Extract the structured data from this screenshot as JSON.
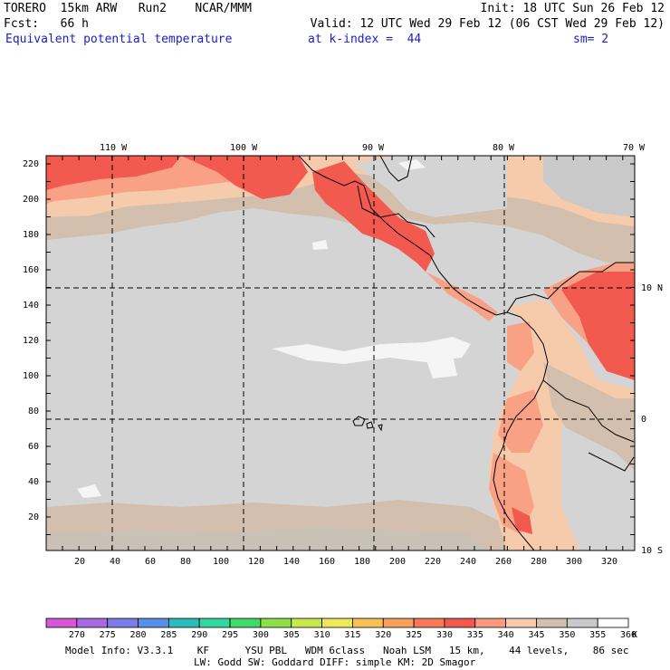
{
  "header": {
    "line1_left": "TORERO  15km ARW   Run2    NCAR/MMM",
    "line1_right": "Init: 18 UTC Sun 26 Feb 12",
    "line2_left": "Fcst:   66 h",
    "line2_right": "Valid: 12 UTC Wed 29 Feb 12 (06 CST Wed 29 Feb 12)",
    "line3_field": "Equivalent potential temperature",
    "line3_level": "at k-index =  44",
    "line3_smooth": "sm= 2"
  },
  "map": {
    "top_lon_labels": [
      "110 W",
      "100 W",
      "90 W",
      "80 W",
      "70 W"
    ],
    "right_lat_labels": [
      "10 N",
      "0",
      "10 S"
    ],
    "y_ticks": [
      "220",
      "200",
      "180",
      "160",
      "140",
      "120",
      "100",
      "80",
      "60",
      "40",
      "20"
    ],
    "x_ticks": [
      "20",
      "40",
      "60",
      "80",
      "100",
      "120",
      "140",
      "160",
      "180",
      "200",
      "220",
      "240",
      "260",
      "280",
      "300",
      "320"
    ],
    "colors": {
      "gray_light": "#d4d4d4",
      "tan": "#d2bfae",
      "peach": "#f6cbab",
      "salmon": "#f9a184",
      "red": "#f25a4f",
      "white": "#f5f5f5",
      "coast": "#000000"
    }
  },
  "colorbar": {
    "labels": [
      "270",
      "275",
      "280",
      "285",
      "290",
      "295",
      "300",
      "305",
      "310",
      "315",
      "320",
      "325",
      "330",
      "335",
      "340",
      "345",
      "350",
      "355",
      "360"
    ],
    "unit": "K",
    "colors": [
      "#d657d6",
      "#a96ae0",
      "#7d7de6",
      "#5b8ee6",
      "#2bbbbb",
      "#2ed89f",
      "#44d866",
      "#8ee04a",
      "#c6e84a",
      "#f0e85a",
      "#f8c058",
      "#f8a060",
      "#f87858",
      "#f05850",
      "#f99a80",
      "#f6cbab",
      "#d2bfae",
      "#c9c9c9",
      "#ffffff"
    ]
  },
  "footer": {
    "line1": "Model Info: V3.3.1    KF      YSU PBL   WDM 6class   Noah LSM   15 km,    44 levels,    86 sec",
    "line2": "LW: Godd SW: Goddard DIFF: simple KM: 2D Smagor"
  }
}
